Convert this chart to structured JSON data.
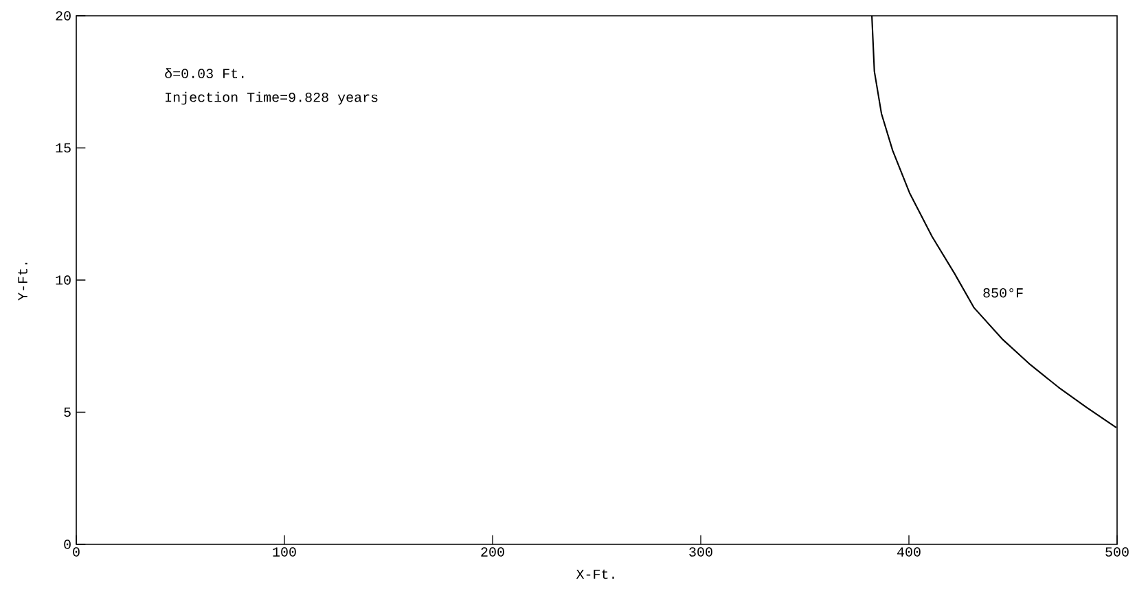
{
  "chart_data": {
    "type": "line",
    "xlabel": "X-Ft.",
    "ylabel": "Y-Ft.",
    "annotations": [
      "δ=0.03 Ft.",
      "Injection Time=9.828 years"
    ],
    "xlim": [
      0,
      500
    ],
    "ylim": [
      0,
      20
    ],
    "xticks": [
      0,
      100,
      200,
      300,
      400,
      500
    ],
    "yticks": [
      0,
      5,
      10,
      15,
      20
    ],
    "grid": false,
    "legend": false,
    "series": [
      {
        "name": "850°F",
        "color": "#000000",
        "x": [
          382.2,
          383.4,
          386.8,
          392.2,
          400.3,
          411.1,
          421.9,
          431.3,
          444.8,
          458.3,
          471.9,
          485.4,
          499.6
        ],
        "values": [
          20,
          17.9,
          16.3,
          14.9,
          13.3,
          11.65,
          10.25,
          8.95,
          7.77,
          6.8,
          5.94,
          5.18,
          4.42
        ]
      }
    ]
  }
}
